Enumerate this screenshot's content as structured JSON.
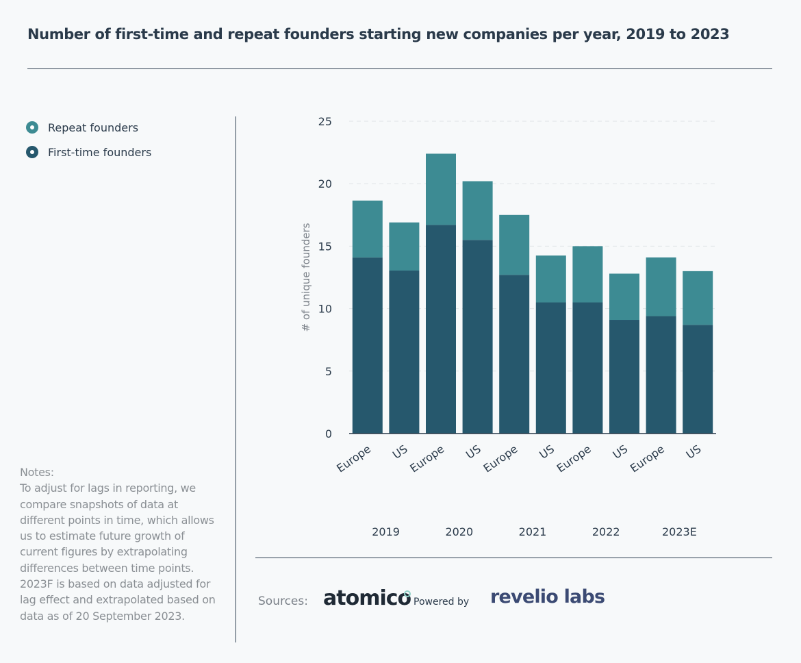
{
  "title": "Number of first-time and repeat founders starting new companies per year, 2019 to 2023",
  "legend": [
    {
      "label": "Repeat founders",
      "color": "#3d8b93"
    },
    {
      "label": "First-time founders",
      "color": "#26586d"
    }
  ],
  "notes": {
    "heading": "Notes:",
    "text": "To adjust for lags in reporting, we compare snapshots of data at different points in time, which allows us to estimate future growth of current figures by extrapolating differences between time points. 2023F is based on data adjusted for lag effect and extrapolated based on data as of 20 September 2023."
  },
  "sources": {
    "label": "Sources:",
    "logo1": "atomico",
    "powered_by": "Powered by",
    "logo2": "revelio labs"
  },
  "chart_data": {
    "type": "bar",
    "stacked": true,
    "title": "Number of first-time and repeat founders starting new companies per year, 2019 to 2023",
    "ylabel": "# of unique founders",
    "xlabel": "",
    "ylim": [
      0,
      25
    ],
    "yticks": [
      0,
      5,
      10,
      15,
      20,
      25
    ],
    "grid": "horizontal-dashed",
    "legend_position": "left",
    "categories": [
      "Europe",
      "US",
      "Europe",
      "US",
      "Europe",
      "US",
      "Europe",
      "US",
      "Europe",
      "US"
    ],
    "groups": [
      "2019",
      "2020",
      "2021",
      "2022",
      "2023E"
    ],
    "series": [
      {
        "name": "First-time founders",
        "color": "#26586d",
        "values": [
          14.1,
          13.05,
          16.7,
          15.5,
          12.7,
          10.5,
          10.5,
          9.1,
          9.4,
          8.7
        ]
      },
      {
        "name": "Repeat founders",
        "color": "#3d8b93",
        "values": [
          4.55,
          3.85,
          5.7,
          4.7,
          4.8,
          3.75,
          4.5,
          3.7,
          4.7,
          4.3
        ]
      }
    ]
  }
}
